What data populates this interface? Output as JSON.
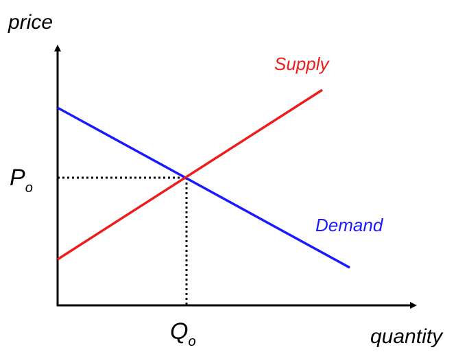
{
  "axes": {
    "y_label": "price",
    "x_label": "quantity"
  },
  "curves": {
    "supply": "Supply",
    "demand": "Demand"
  },
  "equilibrium": {
    "price": {
      "main": "P",
      "sub": "o"
    },
    "quantity": {
      "main": "Q",
      "sub": "o"
    }
  }
}
